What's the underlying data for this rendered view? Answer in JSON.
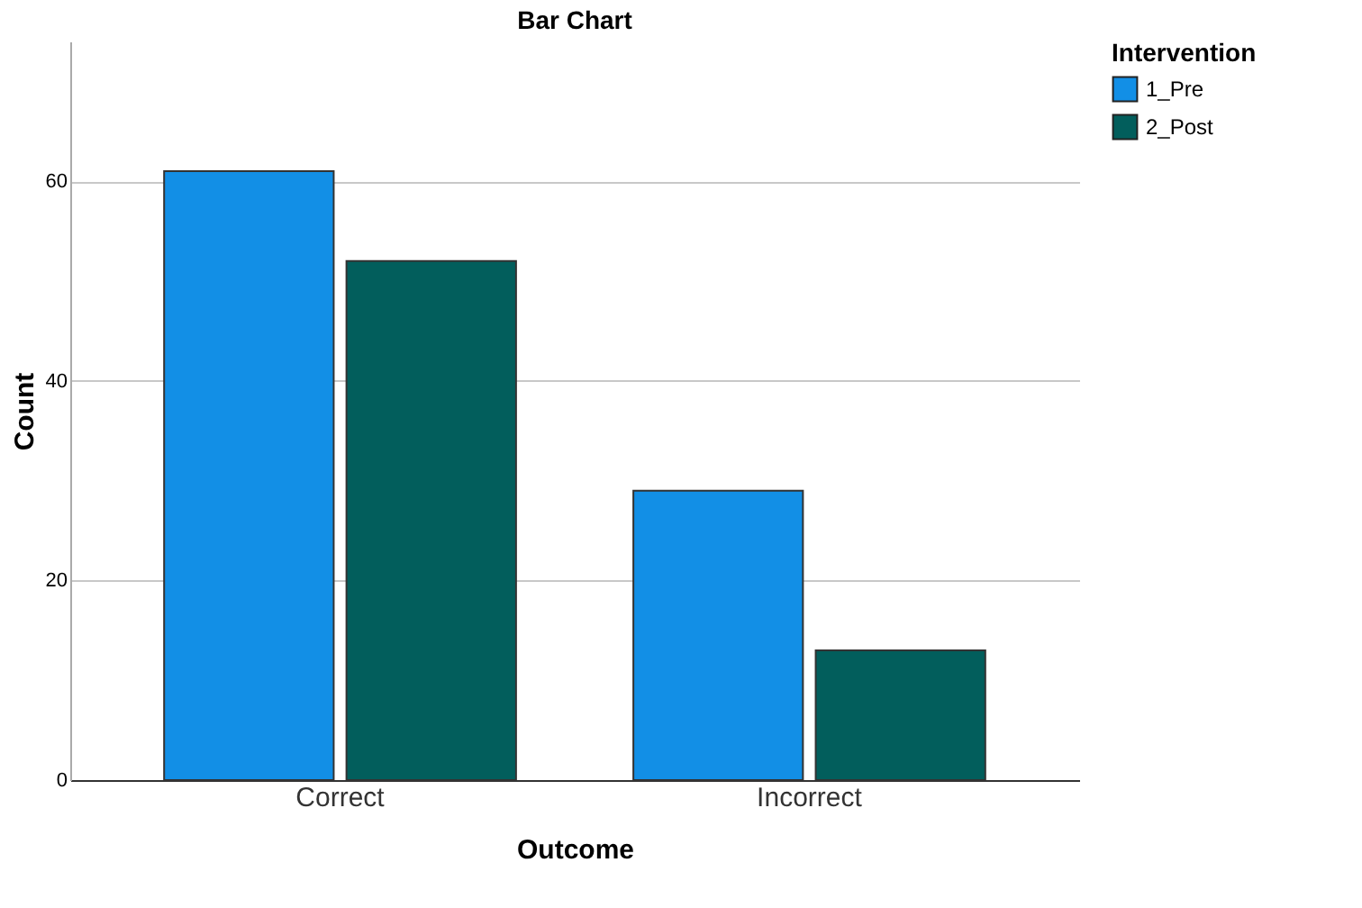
{
  "chart_data": {
    "type": "bar",
    "title": "Bar Chart",
    "xlabel": "Outcome",
    "ylabel": "Count",
    "legend_title": "Intervention",
    "categories": [
      "Correct",
      "Incorrect"
    ],
    "series": [
      {
        "name": "1_Pre",
        "color": "#128fe6",
        "values": [
          61,
          29
        ]
      },
      {
        "name": "2_Post",
        "color": "#025e5c",
        "values": [
          52,
          13
        ]
      }
    ],
    "ylim": [
      0,
      74
    ],
    "yticks": [
      0,
      20,
      40,
      60
    ],
    "grid": "y",
    "legend": "top right"
  }
}
